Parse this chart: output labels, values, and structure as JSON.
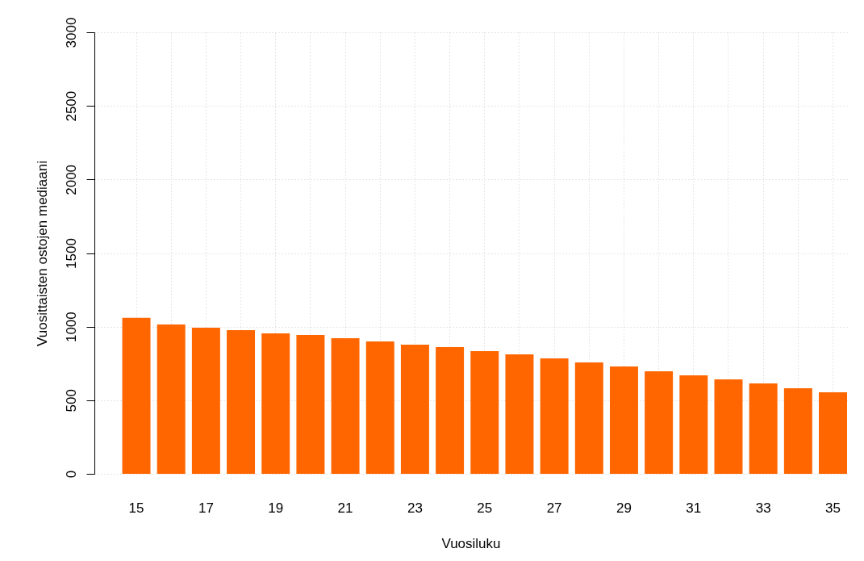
{
  "chart_data": {
    "type": "bar",
    "xlabel": "Vuosiluku",
    "ylabel": "Vuosittaisten ostojen mediaani",
    "categories": [
      "15",
      null,
      "17",
      null,
      "19",
      null,
      "21",
      null,
      "23",
      null,
      "25",
      null,
      "27",
      null,
      "29",
      null,
      "31",
      null,
      "33",
      null,
      "35"
    ],
    "values": [
      1060,
      1015,
      993,
      976,
      954,
      943,
      921,
      899,
      877,
      861,
      834,
      812,
      784,
      757,
      729,
      696,
      669,
      642,
      614,
      581,
      554
    ],
    "color": "#ff6600",
    "ylim": [
      0,
      3000
    ],
    "yticks": [
      0,
      500,
      1000,
      1500,
      2000,
      2500,
      3000
    ],
    "grid": true
  }
}
